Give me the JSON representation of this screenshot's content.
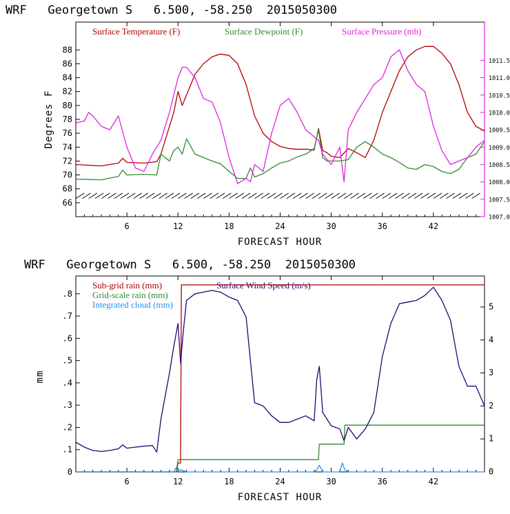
{
  "chart_data": [
    {
      "type": "line",
      "title": "WRF   Georgetown S   6.500, -58.250  2015050300",
      "xlabel": "FORECAST HOUR",
      "ylabel": "Degrees F",
      "xlim": [
        0,
        48
      ],
      "ylim": [
        64,
        92
      ],
      "y2lim": [
        1007.0,
        1012.6
      ],
      "x_ticks": [
        "6",
        "12",
        "18",
        "24",
        "30",
        "36",
        "42"
      ],
      "x_tick_values": [
        6,
        12,
        18,
        24,
        30,
        36,
        42
      ],
      "y_ticks": [
        "66",
        "68",
        "70",
        "72",
        "74",
        "76",
        "78",
        "80",
        "82",
        "84",
        "86",
        "88"
      ],
      "y_tick_values": [
        66,
        68,
        70,
        72,
        74,
        76,
        78,
        80,
        82,
        84,
        86,
        88
      ],
      "y2_ticks": [
        "1007.0",
        "1007.5",
        "1008.0",
        "1008.5",
        "1009.0",
        "1009.5",
        "1010.0",
        "1010.5",
        "1011.0",
        "1011.5"
      ],
      "y2_tick_values": [
        1007.0,
        1007.5,
        1008.0,
        1008.5,
        1009.0,
        1009.5,
        1010.0,
        1010.5,
        1011.0,
        1011.5
      ],
      "legend_position": "top",
      "series": [
        {
          "name": "Surface Temperature (F)",
          "axis": "left",
          "color": "#b00000",
          "x": [
            0,
            3,
            5,
            5.5,
            6,
            8,
            9.5,
            10,
            11,
            11.5,
            12,
            12.5,
            13,
            14,
            15,
            16,
            17,
            18,
            19,
            20,
            21,
            22,
            23,
            24,
            25,
            26,
            27,
            28,
            28.5,
            29,
            29.5,
            30,
            31,
            32,
            33,
            34,
            35,
            36,
            37,
            38,
            39,
            40,
            41,
            42,
            43,
            44,
            45,
            46,
            47,
            48
          ],
          "y": [
            71.5,
            71.3,
            71.7,
            72.4,
            71.8,
            71.7,
            71.9,
            73.0,
            77.0,
            79.0,
            82.0,
            80.0,
            81.5,
            84.5,
            86.0,
            87.0,
            87.4,
            87.2,
            86.0,
            83.0,
            78.5,
            76.0,
            74.8,
            74.1,
            73.8,
            73.7,
            73.7,
            73.6,
            76.7,
            73.5,
            73.2,
            72.7,
            72.5,
            73.8,
            73.2,
            72.5,
            75.0,
            79.0,
            82.0,
            85.0,
            87.0,
            88.0,
            88.5,
            88.5,
            87.5,
            86.0,
            83.0,
            79.0,
            77.0,
            76.3
          ]
        },
        {
          "name": "Surface Dewpoint (F)",
          "axis": "left",
          "color": "#2e8b2e",
          "x": [
            0,
            3,
            5,
            5.5,
            6,
            8,
            9.5,
            10,
            11,
            11.5,
            12,
            12.5,
            13,
            14,
            15,
            16,
            17,
            18,
            19,
            20,
            20.5,
            21,
            22,
            23,
            24,
            25,
            26,
            27,
            28,
            28.5,
            29,
            29.5,
            30,
            31,
            32,
            33,
            34,
            35,
            36,
            37,
            38,
            39,
            40,
            41,
            42,
            43,
            44,
            45,
            46,
            47,
            48
          ],
          "y": [
            69.4,
            69.3,
            69.8,
            70.7,
            70.0,
            70.1,
            70.0,
            73.0,
            72.0,
            73.5,
            74.0,
            73.0,
            75.2,
            73.0,
            72.5,
            72.0,
            71.6,
            70.5,
            69.5,
            69.5,
            71.0,
            69.7,
            70.2,
            71.0,
            71.7,
            72.0,
            72.6,
            73.0,
            73.8,
            76.5,
            72.5,
            72.0,
            72.0,
            72.0,
            72.2,
            74.0,
            74.8,
            74.0,
            73.0,
            72.5,
            71.8,
            71.0,
            70.8,
            71.5,
            71.2,
            70.5,
            70.2,
            70.8,
            72.5,
            73.0,
            74.8
          ]
        },
        {
          "name": "Surface Pressure (mb)",
          "axis": "right",
          "color": "#e020e0",
          "x": [
            0,
            1,
            1.5,
            2,
            3,
            4,
            5,
            6,
            7,
            8,
            9,
            10,
            11,
            12,
            12.5,
            13,
            14,
            15,
            16,
            17,
            18,
            19,
            20,
            20.5,
            21,
            22,
            23,
            24,
            25,
            26,
            27,
            28,
            28.5,
            29,
            30,
            31,
            31.5,
            32,
            33,
            34,
            35,
            36,
            37,
            38,
            39,
            40,
            41,
            42,
            43,
            44,
            45,
            46,
            47,
            48
          ],
          "y": [
            1009.7,
            1009.75,
            1010.0,
            1009.9,
            1009.6,
            1009.5,
            1009.9,
            1009.0,
            1008.4,
            1008.3,
            1008.8,
            1009.2,
            1010.0,
            1011.0,
            1011.3,
            1011.3,
            1011.0,
            1010.4,
            1010.3,
            1009.7,
            1008.7,
            1007.95,
            1008.1,
            1008.0,
            1008.5,
            1008.3,
            1009.4,
            1010.2,
            1010.4,
            1010.0,
            1009.5,
            1009.3,
            1009.2,
            1008.8,
            1008.5,
            1009.0,
            1008.0,
            1009.5,
            1010.0,
            1010.4,
            1010.8,
            1011.0,
            1011.6,
            1011.8,
            1011.2,
            1010.8,
            1010.6,
            1009.6,
            1008.9,
            1008.5,
            1008.6,
            1008.7,
            1009.0,
            1009.2
          ]
        }
      ],
      "wind_barbs": {
        "row_value_y": 67.0,
        "x_start": 0.5,
        "x_end": 47.5,
        "step": 0.75,
        "color": "#000000"
      }
    },
    {
      "type": "line",
      "title": "WRF   Georgetown S   6.500, -58.250  2015050300",
      "xlabel": "FORECAST HOUR",
      "ylabel": "mm",
      "xlim": [
        0,
        48
      ],
      "ylim": [
        0,
        0.88
      ],
      "y2lim": [
        0,
        5.94
      ],
      "x_ticks": [
        "6",
        "12",
        "18",
        "24",
        "30",
        "36",
        "42"
      ],
      "x_tick_values": [
        6,
        12,
        18,
        24,
        30,
        36,
        42
      ],
      "y_ticks": [
        "0",
        ".1",
        ".2",
        ".3",
        ".4",
        ".5",
        ".6",
        ".7",
        ".8"
      ],
      "y_tick_values": [
        0,
        0.1,
        0.2,
        0.3,
        0.4,
        0.5,
        0.6,
        0.7,
        0.8
      ],
      "y2_ticks": [
        "0",
        "1",
        "2",
        "3",
        "4",
        "5"
      ],
      "y2_tick_values": [
        0,
        1,
        2,
        3,
        4,
        5
      ],
      "legend_position": "top",
      "series": [
        {
          "name": "Sub-grid rain (mm)",
          "axis": "left",
          "color": "#b00000",
          "x": [
            0,
            11.8,
            12.0,
            12.3,
            12.4,
            48
          ],
          "y": [
            0,
            0,
            0.04,
            0.04,
            0.84,
            0.84
          ]
        },
        {
          "name": "Grid-scale rain (mm)",
          "axis": "left",
          "color": "#2e8b2e",
          "x": [
            0,
            11.8,
            12.0,
            28.5,
            28.6,
            31.5,
            31.6,
            48
          ],
          "y": [
            0,
            0,
            0.055,
            0.055,
            0.125,
            0.125,
            0.21,
            0.21
          ]
        },
        {
          "name": "Integrated cloud (mm)",
          "axis": "left",
          "color": "#1e90ff",
          "x": [
            0,
            11.5,
            11.8,
            12.0,
            12.3,
            13,
            28,
            28.3,
            28.6,
            29,
            31,
            31.3,
            31.6,
            32,
            48
          ],
          "y": [
            0,
            0,
            0.02,
            0.005,
            0.01,
            0,
            0,
            0.01,
            0.03,
            0,
            0,
            0.04,
            0.01,
            0,
            0
          ]
        },
        {
          "name": "Surface Wind Speed (m/s)",
          "axis": "right",
          "color": "#2a0070",
          "x": [
            0,
            1,
            2,
            3,
            4,
            5,
            5.5,
            6,
            7,
            8,
            9,
            9.5,
            10,
            11,
            11.5,
            12,
            12.3,
            12.6,
            13,
            14,
            15,
            16,
            17,
            18,
            19,
            20,
            21,
            22,
            23,
            24,
            25,
            26,
            27,
            28,
            28.3,
            28.6,
            29,
            30,
            31,
            31.5,
            32,
            33,
            34,
            35,
            36,
            37,
            38,
            39,
            40,
            41,
            42,
            43,
            44,
            45,
            46,
            47,
            48
          ],
          "y": [
            0.9,
            0.75,
            0.65,
            0.62,
            0.65,
            0.7,
            0.82,
            0.72,
            0.75,
            0.78,
            0.8,
            0.6,
            1.6,
            3.0,
            3.8,
            4.5,
            3.3,
            4.2,
            5.2,
            5.4,
            5.45,
            5.5,
            5.45,
            5.3,
            5.2,
            4.7,
            2.1,
            2.0,
            1.7,
            1.5,
            1.5,
            1.6,
            1.7,
            1.55,
            2.8,
            3.2,
            1.8,
            1.4,
            1.3,
            0.95,
            1.35,
            1.0,
            1.3,
            1.8,
            3.5,
            4.5,
            5.1,
            5.15,
            5.2,
            5.35,
            5.6,
            5.2,
            4.6,
            3.2,
            2.6,
            2.6,
            2.0
          ]
        }
      ]
    }
  ]
}
